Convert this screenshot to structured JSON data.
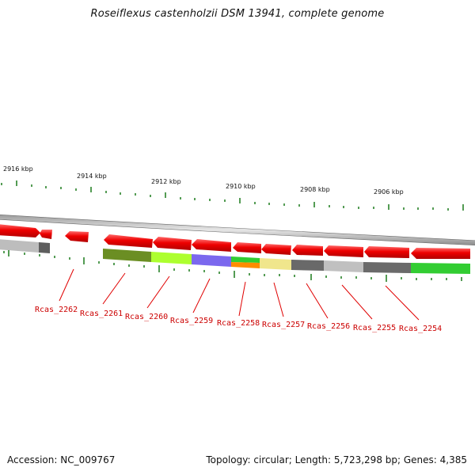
{
  "title": "Roseiflexus castenholzii DSM 13941, complete genome",
  "footer": {
    "accession": "Accession: NC_009767",
    "topology": "Topology: circular; Length: 5,723,298 bp; Genes: 4,385"
  },
  "scale_labels": [
    "2916 kbp",
    "2914 kbp",
    "2912 kbp",
    "2910 kbp",
    "2908 kbp",
    "2906 kbp"
  ],
  "gene_labels": [
    "Rcas_2262",
    "Rcas_2261",
    "Rcas_2260",
    "Rcas_2259",
    "Rcas_2258",
    "Rcas_2257",
    "Rcas_2256",
    "Rcas_2255",
    "Rcas_2254"
  ],
  "colors": {
    "gene_arrow": "#ee0000",
    "label_text": "#cc0000",
    "tick": "#1a7a1a",
    "backbone": "#888888"
  }
}
